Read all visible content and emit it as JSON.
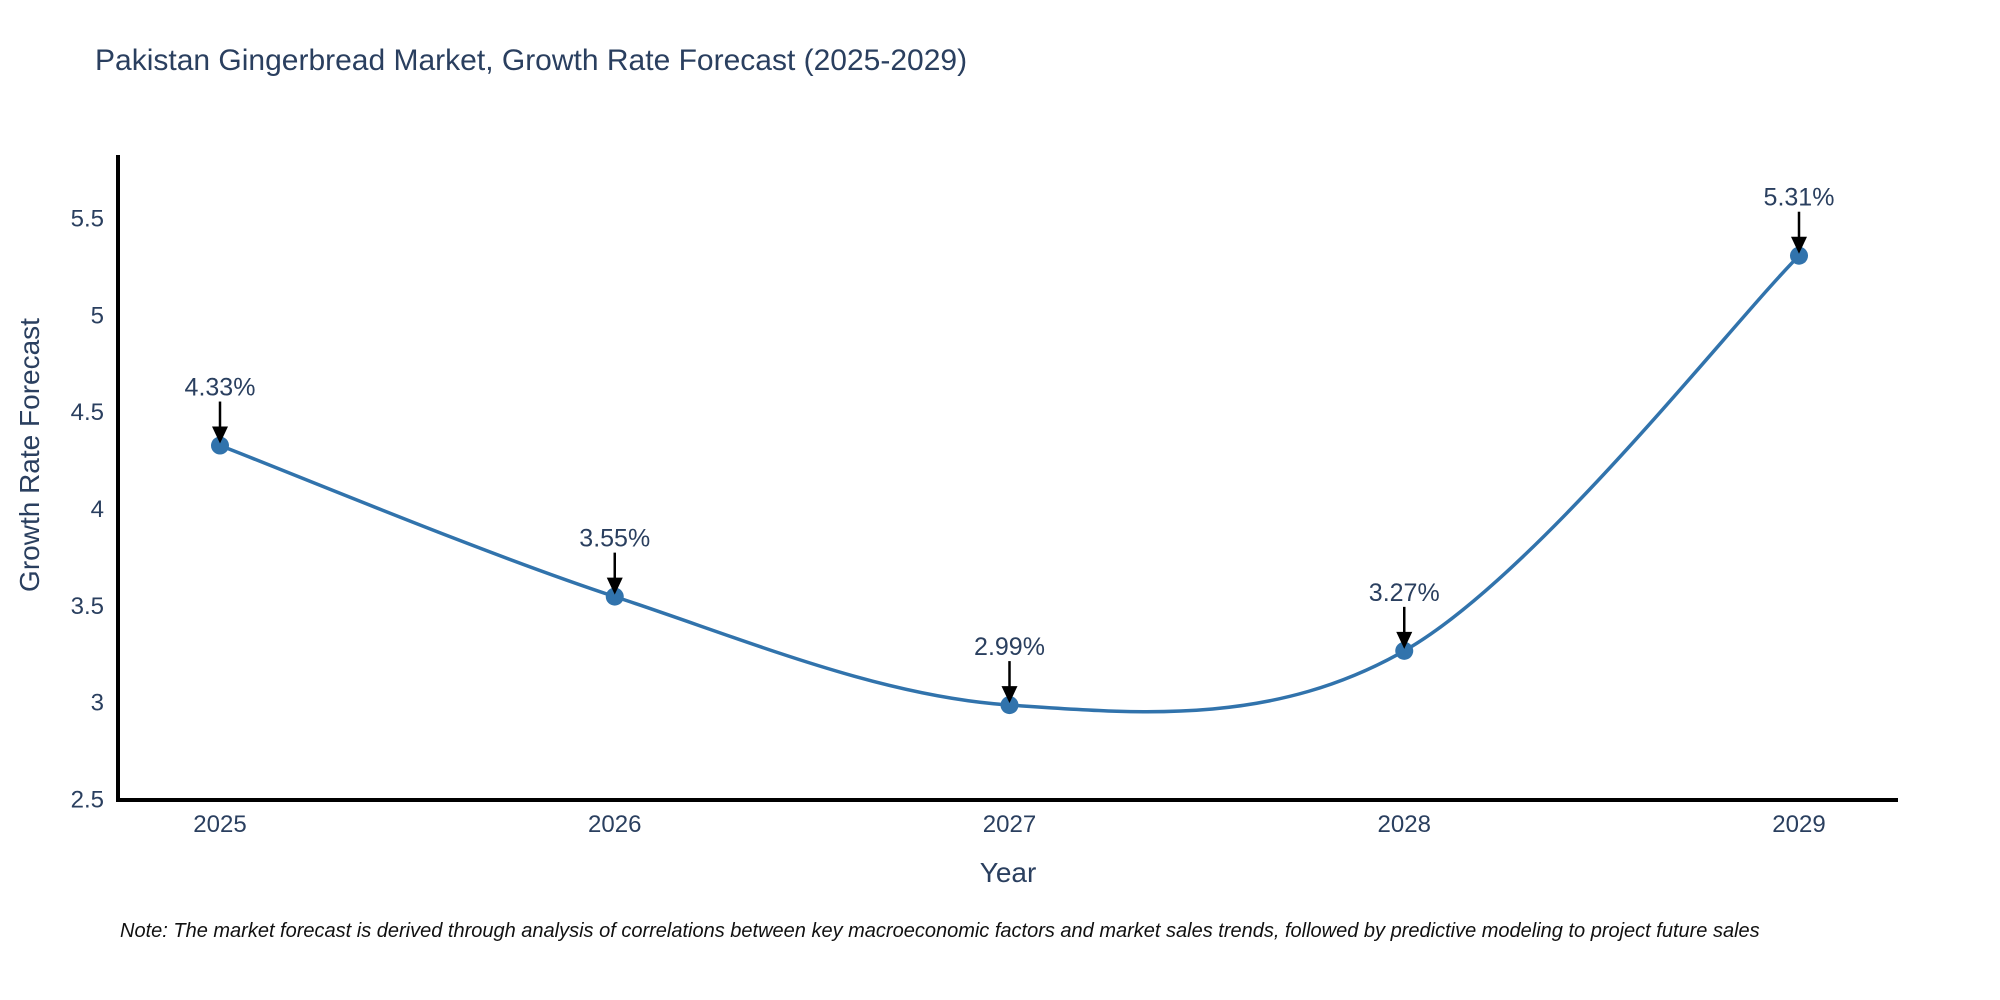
{
  "title": "Pakistan Gingerbread Market, Growth Rate Forecast (2025-2029)",
  "note": "Note: The market forecast is derived through analysis of correlations between key macroeconomic factors and market sales trends, followed by predictive modeling to project future sales",
  "chart_data": {
    "type": "line",
    "title": "Pakistan Gingerbread Market, Growth Rate Forecast (2025-2029)",
    "xlabel": "Year",
    "ylabel": "Growth Rate Forecast",
    "categories": [
      "2025",
      "2026",
      "2027",
      "2028",
      "2029"
    ],
    "values": [
      4.33,
      3.55,
      2.99,
      3.27,
      5.31
    ],
    "point_labels": [
      "4.33%",
      "3.55%",
      "2.99%",
      "3.27%",
      "5.31%"
    ],
    "y_ticks": [
      2.5,
      3,
      3.5,
      4,
      4.5,
      5,
      5.5
    ],
    "y_tick_labels": [
      "2.5",
      "3",
      "3.5",
      "4",
      "4.5",
      "5",
      "5.5"
    ],
    "ylim": [
      2.5,
      5.83
    ],
    "line_shape": "spline",
    "grid": false,
    "legend": false,
    "markers": true,
    "annotations_arrow": true,
    "colors": {
      "line": "#3173ac",
      "marker": "#3173ac",
      "axis": "#000000",
      "tick_text": "#2a3f5f",
      "annotation_text": "#2a3f5f",
      "arrow": "#000000",
      "background": "#ffffff"
    }
  }
}
